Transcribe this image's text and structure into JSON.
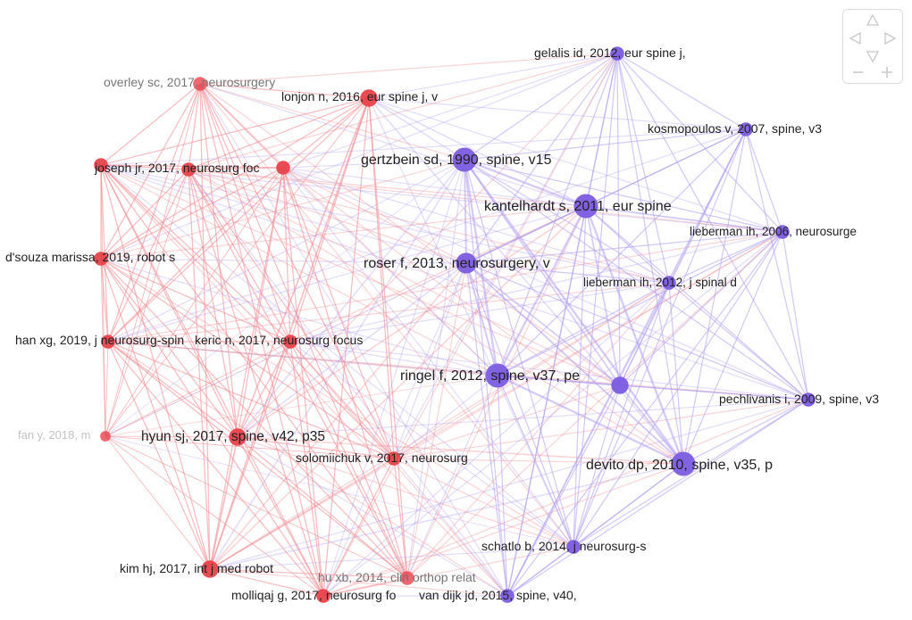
{
  "colors": {
    "cluster_red": "#e8434b",
    "cluster_purple": "#7b5ce0",
    "edge_red": "#f08a8f",
    "edge_purple": "#b3a0ee",
    "label_text": "#222222",
    "label_faded": "#777777",
    "nav_icon": "#c8c8c8"
  },
  "nodes": [
    {
      "id": "overley",
      "label": "overley sc, 2017, neurosurgery",
      "cluster": "red",
      "weight": 2,
      "faded": true
    },
    {
      "id": "lonjon",
      "label": "lonjon n, 2016, eur spine j, v",
      "cluster": "red",
      "weight": 3,
      "faded": false
    },
    {
      "id": "joseph_a",
      "label": "",
      "cluster": "red",
      "weight": 2,
      "faded": false
    },
    {
      "id": "joseph",
      "label": "joseph jr, 2017, neurosurg foc",
      "cluster": "red",
      "weight": 2,
      "faded": false
    },
    {
      "id": "joseph_b",
      "label": "",
      "cluster": "red",
      "weight": 2,
      "faded": false
    },
    {
      "id": "dsouza",
      "label": "d'souza marissa, 2019, robot s",
      "cluster": "red",
      "weight": 2,
      "faded": false
    },
    {
      "id": "han",
      "label": "han xg, 2019, j neurosurg-spin",
      "cluster": "red",
      "weight": 2,
      "faded": false
    },
    {
      "id": "keric",
      "label": "keric n, 2017, neurosurg focus",
      "cluster": "red",
      "weight": 2,
      "faded": false
    },
    {
      "id": "fan",
      "label": "fan y, 2018, m",
      "cluster": "red",
      "weight": 1,
      "faded": true
    },
    {
      "id": "hyun",
      "label": "hyun sj, 2017, spine, v42, p35",
      "cluster": "red",
      "weight": 3,
      "faded": false
    },
    {
      "id": "solomiichuk",
      "label": "solomiichuk v, 2017, neurosurg",
      "cluster": "red",
      "weight": 2,
      "faded": false
    },
    {
      "id": "kim",
      "label": "kim hj, 2017, int j med robot",
      "cluster": "red",
      "weight": 3,
      "faded": false
    },
    {
      "id": "hu",
      "label": "hu xb, 2014, clin orthop relat",
      "cluster": "red",
      "weight": 2,
      "faded": true
    },
    {
      "id": "molliqaj",
      "label": "molliqaj g, 2017, neurosurg fo",
      "cluster": "red",
      "weight": 2,
      "faded": false
    },
    {
      "id": "gelalis",
      "label": "gelalis id, 2012, eur spine j,",
      "cluster": "purple",
      "weight": 2,
      "faded": false
    },
    {
      "id": "kosmopoulos",
      "label": "kosmopoulos v, 2007, spine, v3",
      "cluster": "purple",
      "weight": 2,
      "faded": false
    },
    {
      "id": "gertzbein",
      "label": "gertzbein sd, 1990, spine, v15",
      "cluster": "purple",
      "weight": 5,
      "faded": false
    },
    {
      "id": "kantelhardt",
      "label": "kantelhardt s, 2011, eur spine",
      "cluster": "purple",
      "weight": 5,
      "faded": false
    },
    {
      "id": "lieberman2006",
      "label": "lieberman ih, 2006, neurosurge",
      "cluster": "purple",
      "weight": 2,
      "faded": false
    },
    {
      "id": "roser",
      "label": "roser f, 2013, neurosurgery, v",
      "cluster": "purple",
      "weight": 4,
      "faded": false
    },
    {
      "id": "lieberman2012",
      "label": "lieberman ih, 2012, j spinal d",
      "cluster": "purple",
      "weight": 2,
      "faded": false
    },
    {
      "id": "ringel",
      "label": "ringel f, 2012, spine, v37, pe",
      "cluster": "purple",
      "weight": 5,
      "faded": false
    },
    {
      "id": "unlabeled",
      "label": "",
      "cluster": "purple",
      "weight": 3,
      "faded": false
    },
    {
      "id": "pechlivanis",
      "label": "pechlivanis i, 2009, spine, v3",
      "cluster": "purple",
      "weight": 2,
      "faded": false
    },
    {
      "id": "devito",
      "label": "devito dp, 2010, spine, v35, p",
      "cluster": "purple",
      "weight": 5,
      "faded": false
    },
    {
      "id": "schatlo",
      "label": "schatlo b, 2014, j neurosurg-s",
      "cluster": "purple",
      "weight": 2,
      "faded": false
    },
    {
      "id": "vandijk",
      "label": "van dijk jd, 2015, spine, v40,",
      "cluster": "purple",
      "weight": 2,
      "faded": false
    }
  ],
  "navigation": {
    "up_icon": "triangle-up",
    "down_icon": "triangle-down",
    "left_icon": "triangle-left",
    "right_icon": "triangle-right",
    "zoom_out_icon": "minus",
    "zoom_in_icon": "plus"
  }
}
